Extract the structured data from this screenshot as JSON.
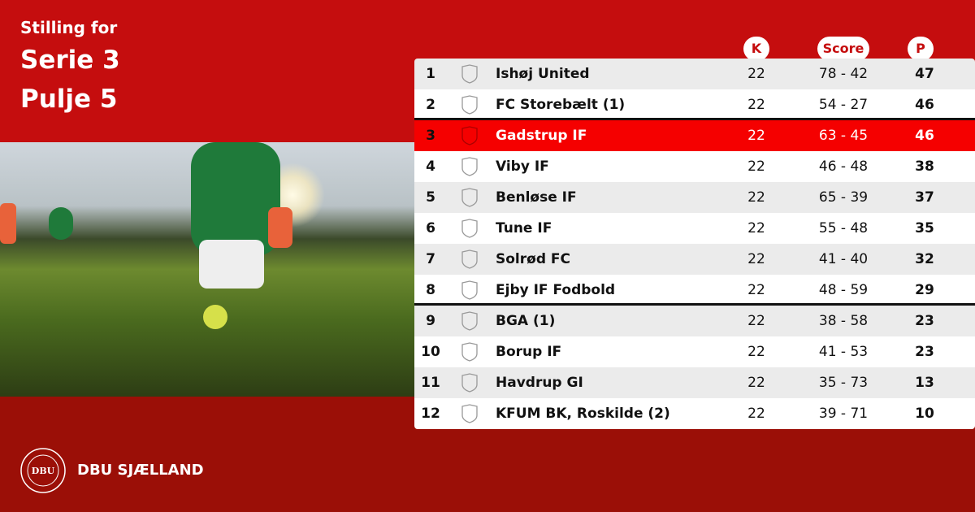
{
  "heading": {
    "line1": "Stilling for",
    "line2": "Serie 3",
    "line3": "Pulje 5"
  },
  "columns": {
    "k": "K",
    "score": "Score",
    "p": "P"
  },
  "rows": [
    {
      "rank": "1",
      "team": "Ishøj United",
      "k": "22",
      "score": "78 - 42",
      "p": "47"
    },
    {
      "rank": "2",
      "team": "FC Storebælt (1)",
      "k": "22",
      "score": "54 - 27",
      "p": "46"
    },
    {
      "rank": "3",
      "team": "Gadstrup IF",
      "k": "22",
      "score": "63 - 45",
      "p": "46"
    },
    {
      "rank": "4",
      "team": "Viby IF",
      "k": "22",
      "score": "46 - 48",
      "p": "38"
    },
    {
      "rank": "5",
      "team": "Benløse IF",
      "k": "22",
      "score": "65 - 39",
      "p": "37"
    },
    {
      "rank": "6",
      "team": "Tune IF",
      "k": "22",
      "score": "55 - 48",
      "p": "35"
    },
    {
      "rank": "7",
      "team": "Solrød FC",
      "k": "22",
      "score": "41 - 40",
      "p": "32"
    },
    {
      "rank": "8",
      "team": "Ejby IF Fodbold",
      "k": "22",
      "score": "48 - 59",
      "p": "29"
    },
    {
      "rank": "9",
      "team": "BGA (1)",
      "k": "22",
      "score": "38 - 58",
      "p": "23"
    },
    {
      "rank": "10",
      "team": "Borup IF",
      "k": "22",
      "score": "41 - 53",
      "p": "23"
    },
    {
      "rank": "11",
      "team": "Havdrup GI",
      "k": "22",
      "score": "35 - 73",
      "p": "13"
    },
    {
      "rank": "12",
      "team": "KFUM BK, Roskilde (2)",
      "k": "22",
      "score": "39 - 71",
      "p": "10"
    }
  ],
  "highlight_rank": "3",
  "footer": {
    "brand": "DBU SJÆLLAND",
    "logo_text": "DANSK BOLDSPIL-UNION 1889 DBU"
  },
  "colors": {
    "brand_red": "#c50d0e",
    "highlight": "#f50000",
    "footer_red": "#9b0f07"
  }
}
